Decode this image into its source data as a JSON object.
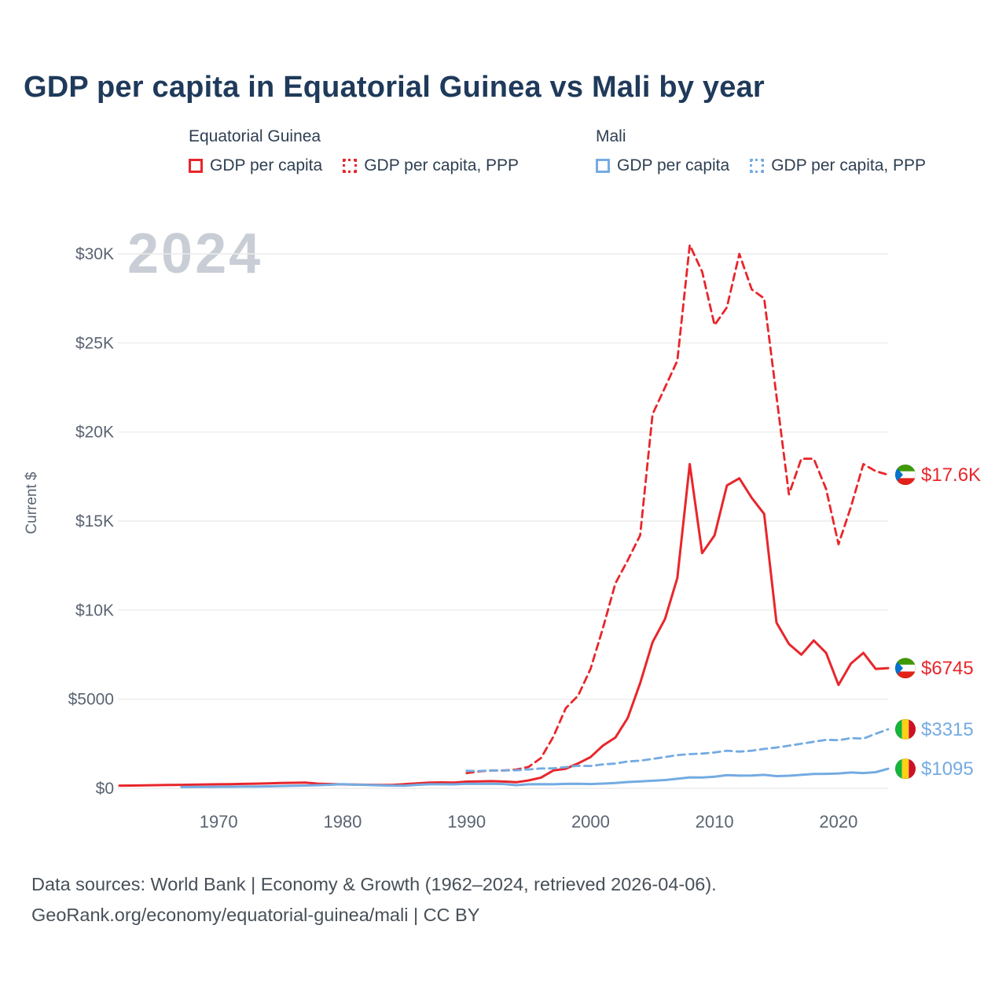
{
  "header": {
    "title": "GDP per capita in Equatorial Guinea vs Mali by year"
  },
  "legend": {
    "groups": [
      {
        "title": "Equatorial Guinea",
        "items": [
          {
            "label": "GDP per capita"
          },
          {
            "label": "GDP per capita, PPP"
          }
        ]
      },
      {
        "title": "Mali",
        "items": [
          {
            "label": "GDP per capita"
          },
          {
            "label": "GDP per capita, PPP"
          }
        ]
      }
    ]
  },
  "colors": {
    "eq_guinea": "#e8262b",
    "mali": "#74abe2",
    "title": "#1f3a5a",
    "watermark": "#c9ced6",
    "grid": "#ececec",
    "axis_text": "#5a6472",
    "footer_text": "#474f58"
  },
  "flags": {
    "gq": [
      "#3e9a00",
      "#ffffff",
      "#e32118",
      "#0073ce"
    ],
    "ml": [
      "#14b53a",
      "#fcd116",
      "#ce1126"
    ]
  },
  "chart_data": {
    "type": "line",
    "title": "GDP per capita in Equatorial Guinea vs Mali by year",
    "xlabel": "",
    "ylabel": "Current $",
    "watermark": "2024",
    "grid": true,
    "legend_position": "top",
    "x_range": [
      1962,
      2024
    ],
    "ylim": [
      0,
      31000
    ],
    "x_ticks": [
      1970,
      1980,
      1990,
      2000,
      2010,
      2020
    ],
    "y_ticks": [
      {
        "value": 0,
        "label": "$0"
      },
      {
        "value": 5000,
        "label": "$5000"
      },
      {
        "value": 10000,
        "label": "$10K"
      },
      {
        "value": 15000,
        "label": "$15K"
      },
      {
        "value": 20000,
        "label": "$20K"
      },
      {
        "value": 25000,
        "label": "$25K"
      },
      {
        "value": 30000,
        "label": "$30K"
      }
    ],
    "series": [
      {
        "name": "Equatorial Guinea — GDP per capita",
        "color_key": "eq_guinea",
        "dash": false,
        "start_year": 1962,
        "values": [
          150,
          155,
          165,
          175,
          185,
          195,
          205,
          215,
          225,
          235,
          245,
          260,
          280,
          300,
          310,
          320,
          260,
          240,
          220,
          210,
          200,
          190,
          185,
          230,
          280,
          320,
          330,
          320,
          375,
          390,
          400,
          380,
          340,
          440,
          600,
          1000,
          1100,
          1400,
          1750,
          2400,
          2850,
          3950,
          5900,
          8200,
          9500,
          11800,
          18200,
          13200,
          14200,
          17000,
          17400,
          16300,
          15400,
          9300,
          8100,
          7500,
          8300,
          7600,
          5800,
          7000,
          7600,
          6700,
          6745
        ]
      },
      {
        "name": "Equatorial Guinea — GDP per capita, PPP",
        "color_key": "eq_guinea",
        "dash": true,
        "start_year": 1990,
        "values": [
          850,
          950,
          1000,
          1000,
          1050,
          1200,
          1700,
          2900,
          4500,
          5200,
          6700,
          9000,
          11500,
          12800,
          14200,
          21000,
          22500,
          24000,
          30500,
          29000,
          26000,
          27000,
          30000,
          28000,
          27500,
          22000,
          16500,
          18500,
          18500,
          16800,
          13700,
          15800,
          18200,
          17800,
          17600
        ]
      },
      {
        "name": "Mali — GDP per capita",
        "color_key": "mali",
        "dash": false,
        "start_year": 1967,
        "values": [
          70,
          75,
          80,
          85,
          90,
          95,
          100,
          110,
          130,
          140,
          155,
          175,
          200,
          230,
          205,
          185,
          165,
          150,
          145,
          195,
          225,
          225,
          220,
          250,
          245,
          255,
          240,
          175,
          225,
          235,
          225,
          245,
          250,
          240,
          265,
          295,
          355,
          390,
          425,
          465,
          535,
          615,
          605,
          650,
          735,
          710,
          720,
          755,
          685,
          705,
          755,
          805,
          810,
          835,
          885,
          855,
          905,
          1095
        ]
      },
      {
        "name": "Mali — GDP per capita, PPP",
        "color_key": "mali",
        "dash": true,
        "start_year": 1990,
        "values": [
          980,
          970,
          1000,
          1000,
          1010,
          1060,
          1110,
          1120,
          1190,
          1260,
          1255,
          1340,
          1390,
          1510,
          1550,
          1650,
          1750,
          1860,
          1920,
          1950,
          2010,
          2110,
          2060,
          2110,
          2210,
          2290,
          2390,
          2500,
          2610,
          2720,
          2700,
          2820,
          2790,
          3060,
          3315
        ]
      }
    ],
    "end_labels": [
      {
        "label": "$17.6K",
        "value": 17600,
        "country": "Equatorial Guinea",
        "flag": "gq",
        "color_key": "eq_guinea"
      },
      {
        "label": "$6745",
        "value": 6745,
        "country": "Equatorial Guinea",
        "flag": "gq",
        "color_key": "eq_guinea"
      },
      {
        "label": "$3315",
        "value": 3315,
        "country": "Mali",
        "flag": "ml",
        "color_key": "mali"
      },
      {
        "label": "$1095",
        "value": 1095,
        "country": "Mali",
        "flag": "ml",
        "color_key": "mali"
      }
    ]
  },
  "footer": {
    "line1": "Data sources: World Bank | Economy & Growth (1962–2024, retrieved 2026-04-06).",
    "line2": "GeoRank.org/economy/equatorial-guinea/mali | CC BY"
  }
}
